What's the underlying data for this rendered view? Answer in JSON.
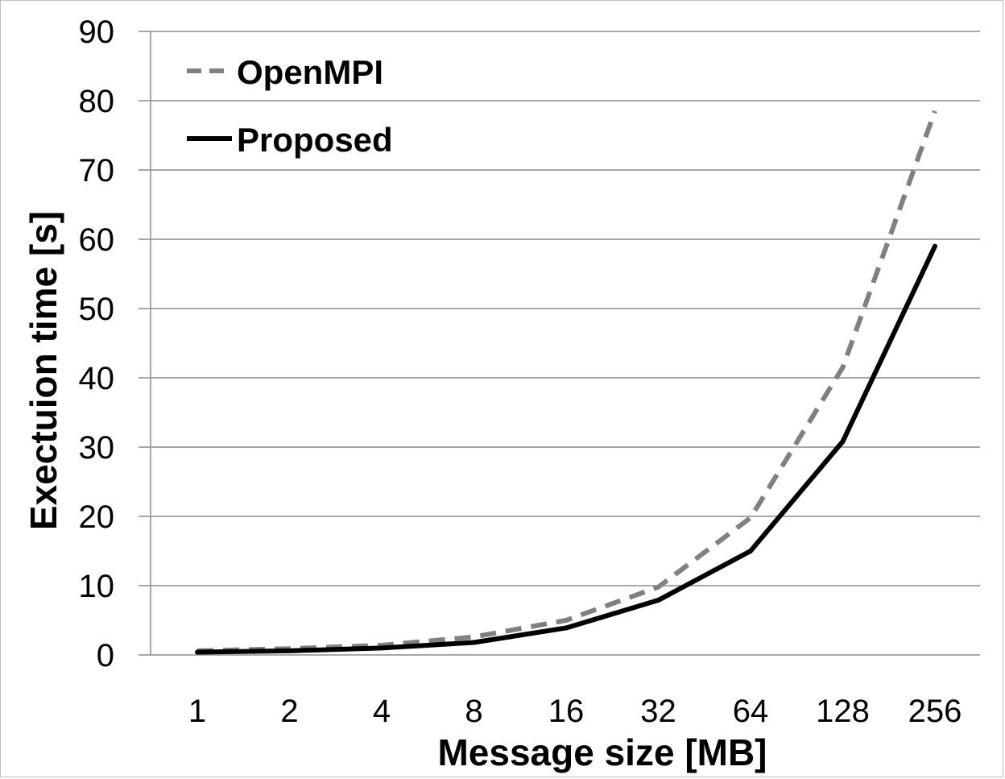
{
  "chart_data": {
    "type": "line",
    "categories": [
      "1",
      "2",
      "4",
      "8",
      "16",
      "32",
      "64",
      "128",
      "256"
    ],
    "xlabel": "Message size [MB]",
    "ylabel": "Exectuion time [s]",
    "ylim": [
      0,
      90
    ],
    "yticks": [
      0,
      10,
      20,
      30,
      40,
      50,
      60,
      70,
      80,
      90
    ],
    "grid": true,
    "legend_position": "top-left",
    "series": [
      {
        "name": "OpenMPI",
        "style": "dashed",
        "color": "#808080",
        "values": [
          0.6,
          0.9,
          1.4,
          2.6,
          5.0,
          9.8,
          19.8,
          41.5,
          78.5
        ]
      },
      {
        "name": "Proposed",
        "style": "solid",
        "color": "#000000",
        "values": [
          0.4,
          0.6,
          1.0,
          1.8,
          3.9,
          7.9,
          15.0,
          30.8,
          59.0
        ]
      }
    ]
  }
}
